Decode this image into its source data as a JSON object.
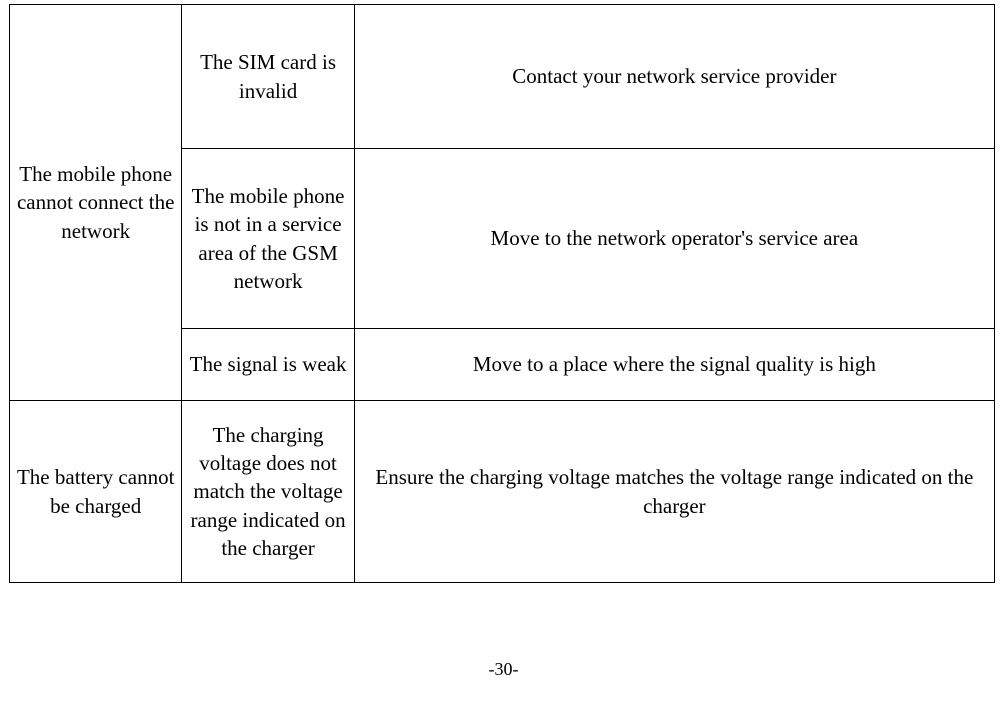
{
  "table": {
    "border_color": "#000000",
    "background_color": "#ffffff",
    "text_color": "#000000",
    "font_family": "Times New Roman",
    "font_size_pt": 16,
    "rows": [
      {
        "problem": "The mobile phone cannot connect the network",
        "problem_rowspan": 3,
        "cause": "The SIM card is invalid",
        "solution": "Contact your network service provider"
      },
      {
        "cause": "The mobile phone is not in a service area of the GSM network",
        "solution": "Move to the network operator's service area"
      },
      {
        "cause": "The signal is weak",
        "solution": "Move to a place where the signal quality is high"
      },
      {
        "problem": "The battery cannot be charged",
        "problem_rowspan": 1,
        "cause": "The charging voltage does not match the voltage range indicated on the charger",
        "solution": "Ensure the charging voltage matches the voltage range indicated on the charger"
      }
    ]
  },
  "page_number": "-30-"
}
